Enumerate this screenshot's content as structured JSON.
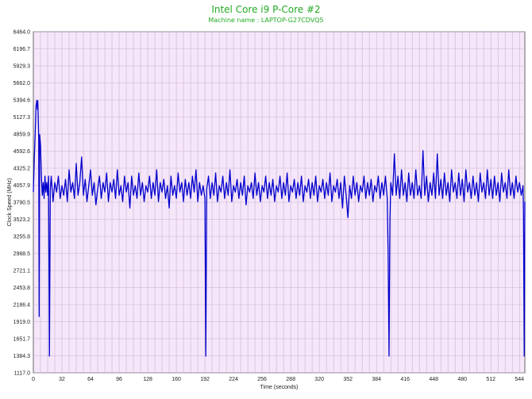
{
  "chart_data": {
    "type": "line",
    "title": "Intel Core i9 P-Core #2",
    "subtitle": "Machine name : LAPTOP-G27CDVQ5",
    "xlabel": "Time (seconds)",
    "ylabel": "Clock Speed (MHz)",
    "xlim": [
      0,
      550
    ],
    "ylim": [
      1117.0,
      6464.0
    ],
    "x_ticks": [
      0,
      32,
      64,
      96,
      128,
      160,
      192,
      224,
      256,
      288,
      320,
      352,
      384,
      416,
      448,
      480,
      512,
      544
    ],
    "y_ticks": [
      "1117.0",
      "1384.3",
      "1651.7",
      "1919.0",
      "2186.4",
      "2453.8",
      "2721.1",
      "2988.5",
      "3255.8",
      "3523.2",
      "3790.5",
      "4057.9",
      "4325.2",
      "4592.6",
      "4859.9",
      "5127.3",
      "5394.6",
      "5662.0",
      "5929.3",
      "6196.7",
      "6464.0"
    ],
    "grid": true,
    "legend": "none",
    "series": [
      {
        "color": "#0000cc",
        "points": [
          [
            0,
            3950
          ],
          [
            1,
            4450
          ],
          [
            2,
            4850
          ],
          [
            3,
            5300
          ],
          [
            4,
            5390
          ],
          [
            4.5,
            5250
          ],
          [
            5,
            5380
          ],
          [
            5.5,
            5100
          ],
          [
            6,
            4800
          ],
          [
            6.5,
            2000
          ],
          [
            7,
            4850
          ],
          [
            8,
            4700
          ],
          [
            9,
            4200
          ],
          [
            10,
            3900
          ],
          [
            11,
            4100
          ],
          [
            12,
            3850
          ],
          [
            13,
            4200
          ],
          [
            14,
            3950
          ],
          [
            15,
            4100
          ],
          [
            16,
            3900
          ],
          [
            17,
            4200
          ],
          [
            18,
            1380
          ],
          [
            19,
            4000
          ],
          [
            20,
            4200
          ],
          [
            22,
            3800
          ],
          [
            24,
            4100
          ],
          [
            26,
            3950
          ],
          [
            28,
            4200
          ],
          [
            30,
            3850
          ],
          [
            32,
            4050
          ],
          [
            34,
            3900
          ],
          [
            36,
            4150
          ],
          [
            38,
            3800
          ],
          [
            40,
            4300
          ],
          [
            42,
            3950
          ],
          [
            44,
            4100
          ],
          [
            46,
            3850
          ],
          [
            48,
            4400
          ],
          [
            50,
            3900
          ],
          [
            52,
            4100
          ],
          [
            54,
            4500
          ],
          [
            56,
            3900
          ],
          [
            58,
            4150
          ],
          [
            60,
            3800
          ],
          [
            62,
            4050
          ],
          [
            64,
            4300
          ],
          [
            66,
            3900
          ],
          [
            68,
            4100
          ],
          [
            70,
            3750
          ],
          [
            72,
            4000
          ],
          [
            74,
            4200
          ],
          [
            76,
            3850
          ],
          [
            78,
            4100
          ],
          [
            80,
            3950
          ],
          [
            82,
            4250
          ],
          [
            84,
            3800
          ],
          [
            86,
            4100
          ],
          [
            88,
            3950
          ],
          [
            90,
            4150
          ],
          [
            92,
            3850
          ],
          [
            94,
            4300
          ],
          [
            96,
            3900
          ],
          [
            98,
            4050
          ],
          [
            100,
            3800
          ],
          [
            102,
            4200
          ],
          [
            104,
            3950
          ],
          [
            106,
            4100
          ],
          [
            108,
            3700
          ],
          [
            110,
            4200
          ],
          [
            112,
            3900
          ],
          [
            114,
            4050
          ],
          [
            116,
            3850
          ],
          [
            118,
            4250
          ],
          [
            120,
            3900
          ],
          [
            122,
            4100
          ],
          [
            124,
            3800
          ],
          [
            126,
            4050
          ],
          [
            128,
            3950
          ],
          [
            130,
            4200
          ],
          [
            132,
            3850
          ],
          [
            134,
            4100
          ],
          [
            136,
            3900
          ],
          [
            138,
            4300
          ],
          [
            140,
            3800
          ],
          [
            142,
            4100
          ],
          [
            144,
            3950
          ],
          [
            146,
            4150
          ],
          [
            148,
            3850
          ],
          [
            150,
            4050
          ],
          [
            152,
            3700
          ],
          [
            154,
            4200
          ],
          [
            156,
            3900
          ],
          [
            158,
            4050
          ],
          [
            160,
            3850
          ],
          [
            162,
            4250
          ],
          [
            164,
            3950
          ],
          [
            166,
            4100
          ],
          [
            168,
            3800
          ],
          [
            170,
            4150
          ],
          [
            172,
            3900
          ],
          [
            174,
            4100
          ],
          [
            176,
            3850
          ],
          [
            178,
            4200
          ],
          [
            180,
            3950
          ],
          [
            182,
            4300
          ],
          [
            184,
            3800
          ],
          [
            186,
            4100
          ],
          [
            188,
            3900
          ],
          [
            190,
            4050
          ],
          [
            192,
            3850
          ],
          [
            193,
            1380
          ],
          [
            194,
            4000
          ],
          [
            196,
            4200
          ],
          [
            198,
            3850
          ],
          [
            200,
            4100
          ],
          [
            202,
            3900
          ],
          [
            204,
            4250
          ],
          [
            206,
            3800
          ],
          [
            208,
            4050
          ],
          [
            210,
            3950
          ],
          [
            212,
            4200
          ],
          [
            214,
            3850
          ],
          [
            216,
            4100
          ],
          [
            218,
            3900
          ],
          [
            220,
            4300
          ],
          [
            222,
            3800
          ],
          [
            224,
            4050
          ],
          [
            226,
            3950
          ],
          [
            228,
            4150
          ],
          [
            230,
            3850
          ],
          [
            232,
            4100
          ],
          [
            234,
            3900
          ],
          [
            236,
            4200
          ],
          [
            238,
            3750
          ],
          [
            240,
            4050
          ],
          [
            242,
            3950
          ],
          [
            244,
            4100
          ],
          [
            246,
            3850
          ],
          [
            248,
            4250
          ],
          [
            250,
            3900
          ],
          [
            252,
            4100
          ],
          [
            254,
            3800
          ],
          [
            256,
            4050
          ],
          [
            258,
            3950
          ],
          [
            260,
            4200
          ],
          [
            262,
            3850
          ],
          [
            264,
            4100
          ],
          [
            266,
            3900
          ],
          [
            268,
            4150
          ],
          [
            270,
            3800
          ],
          [
            272,
            4050
          ],
          [
            274,
            3950
          ],
          [
            276,
            4200
          ],
          [
            278,
            3850
          ],
          [
            280,
            4100
          ],
          [
            282,
            3900
          ],
          [
            284,
            4250
          ],
          [
            286,
            3800
          ],
          [
            288,
            4050
          ],
          [
            290,
            3950
          ],
          [
            292,
            4150
          ],
          [
            294,
            3850
          ],
          [
            296,
            4100
          ],
          [
            298,
            3900
          ],
          [
            300,
            4200
          ],
          [
            302,
            3800
          ],
          [
            304,
            4050
          ],
          [
            306,
            3950
          ],
          [
            308,
            4150
          ],
          [
            310,
            3850
          ],
          [
            312,
            4100
          ],
          [
            314,
            3900
          ],
          [
            316,
            4200
          ],
          [
            318,
            3800
          ],
          [
            320,
            4050
          ],
          [
            322,
            3950
          ],
          [
            324,
            4150
          ],
          [
            326,
            3850
          ],
          [
            328,
            4100
          ],
          [
            330,
            3900
          ],
          [
            332,
            4250
          ],
          [
            334,
            3800
          ],
          [
            336,
            4050
          ],
          [
            338,
            3950
          ],
          [
            340,
            4150
          ],
          [
            342,
            3850
          ],
          [
            344,
            4100
          ],
          [
            346,
            3700
          ],
          [
            348,
            4200
          ],
          [
            350,
            3900
          ],
          [
            352,
            3550
          ],
          [
            354,
            4050
          ],
          [
            356,
            3850
          ],
          [
            358,
            4200
          ],
          [
            360,
            3900
          ],
          [
            362,
            4100
          ],
          [
            364,
            3800
          ],
          [
            366,
            4050
          ],
          [
            368,
            3950
          ],
          [
            370,
            4200
          ],
          [
            372,
            3850
          ],
          [
            374,
            4100
          ],
          [
            376,
            3900
          ],
          [
            378,
            4150
          ],
          [
            380,
            3800
          ],
          [
            382,
            4050
          ],
          [
            384,
            3950
          ],
          [
            386,
            4200
          ],
          [
            388,
            3850
          ],
          [
            390,
            4100
          ],
          [
            392,
            3900
          ],
          [
            394,
            4200
          ],
          [
            396,
            3850
          ],
          [
            397,
            3000
          ],
          [
            398,
            1380
          ],
          [
            399,
            3500
          ],
          [
            400,
            4100
          ],
          [
            402,
            3900
          ],
          [
            404,
            4550
          ],
          [
            406,
            3900
          ],
          [
            408,
            4200
          ],
          [
            410,
            3850
          ],
          [
            412,
            4300
          ],
          [
            414,
            3900
          ],
          [
            416,
            4100
          ],
          [
            418,
            3800
          ],
          [
            420,
            4250
          ],
          [
            422,
            3900
          ],
          [
            424,
            4100
          ],
          [
            426,
            3850
          ],
          [
            428,
            4300
          ],
          [
            430,
            3900
          ],
          [
            432,
            4050
          ],
          [
            434,
            3850
          ],
          [
            436,
            4600
          ],
          [
            438,
            3900
          ],
          [
            440,
            4200
          ],
          [
            442,
            3800
          ],
          [
            444,
            4100
          ],
          [
            446,
            3900
          ],
          [
            448,
            4250
          ],
          [
            450,
            3850
          ],
          [
            452,
            4550
          ],
          [
            454,
            3900
          ],
          [
            456,
            4150
          ],
          [
            458,
            3850
          ],
          [
            460,
            4250
          ],
          [
            462,
            3900
          ],
          [
            464,
            4100
          ],
          [
            466,
            3800
          ],
          [
            468,
            4300
          ],
          [
            470,
            3950
          ],
          [
            472,
            4100
          ],
          [
            474,
            3850
          ],
          [
            476,
            4250
          ],
          [
            478,
            3900
          ],
          [
            480,
            4150
          ],
          [
            482,
            3800
          ],
          [
            484,
            4300
          ],
          [
            486,
            3950
          ],
          [
            488,
            4100
          ],
          [
            490,
            3850
          ],
          [
            492,
            4200
          ],
          [
            494,
            3900
          ],
          [
            496,
            4100
          ],
          [
            498,
            3800
          ],
          [
            500,
            4250
          ],
          [
            502,
            3950
          ],
          [
            504,
            4100
          ],
          [
            506,
            3850
          ],
          [
            508,
            4300
          ],
          [
            510,
            3900
          ],
          [
            512,
            4150
          ],
          [
            514,
            3850
          ],
          [
            516,
            4200
          ],
          [
            518,
            3900
          ],
          [
            520,
            4100
          ],
          [
            522,
            3800
          ],
          [
            524,
            4250
          ],
          [
            526,
            3950
          ],
          [
            528,
            4100
          ],
          [
            530,
            3850
          ],
          [
            532,
            4300
          ],
          [
            534,
            3900
          ],
          [
            536,
            4100
          ],
          [
            538,
            3850
          ],
          [
            540,
            4200
          ],
          [
            542,
            3950
          ],
          [
            544,
            4100
          ],
          [
            546,
            3900
          ],
          [
            548,
            4050
          ],
          [
            548.5,
            3600
          ],
          [
            549,
            2200
          ],
          [
            549.3,
            1380
          ],
          [
            550,
            3800
          ]
        ]
      }
    ]
  }
}
